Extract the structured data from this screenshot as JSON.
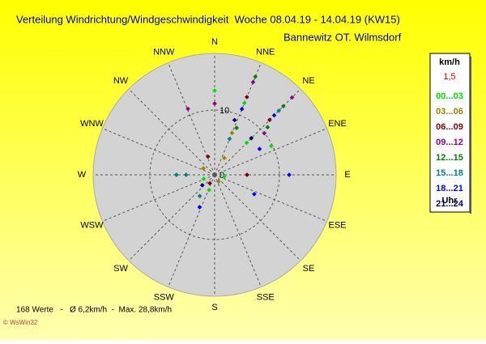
{
  "chart_data": {
    "type": "polar-scatter",
    "title": "Verteilung Windrichtung/Windgeschwindigkeit  Woche 08.04.19 - 14.04.19 (KW15)",
    "subtitle": "Bannewitz OT. Wilmsdorf",
    "directions": [
      "N",
      "NNE",
      "NE",
      "ENE",
      "E",
      "ESE",
      "SE",
      "SSE",
      "S",
      "SSW",
      "SW",
      "WSW",
      "W",
      "WNW",
      "NW",
      "NNW"
    ],
    "rlim": [
      0,
      18.75
    ],
    "rticks": [
      0,
      10
    ],
    "legend_title": "km/h",
    "legend_scale": "1,5",
    "legend_unit": "Uhr",
    "series": [
      {
        "name": "00...03",
        "color": "#00e000",
        "theta": [
          45,
          22.5,
          0,
          63,
          100,
          200,
          250
        ],
        "values": [
          7,
          12,
          13,
          9.8,
          1.5,
          2.5,
          1.8
        ]
      },
      {
        "name": "03...06",
        "color": "#a08000",
        "theta": [
          22.5,
          30,
          150,
          300
        ],
        "values": [
          7,
          3,
          1.2,
          2
        ]
      },
      {
        "name": "06...09",
        "color": "#800000",
        "theta": [
          45,
          22.5,
          90,
          340,
          210
        ],
        "values": [
          12,
          13,
          5,
          3,
          1.5
        ]
      },
      {
        "name": "09...12",
        "color": "#900090",
        "theta": [
          45,
          22.5,
          0,
          338,
          50
        ],
        "values": [
          16.9,
          15.5,
          11,
          11,
          10
        ]
      },
      {
        "name": "12...15",
        "color": "#008000",
        "theta": [
          45,
          22.5,
          48,
          25
        ],
        "values": [
          15,
          16.4,
          11,
          8
        ]
      },
      {
        "name": "15...18",
        "color": "#008080",
        "theta": [
          45,
          22.5,
          270,
          270,
          215
        ],
        "values": [
          14,
          6,
          5.9,
          4.4,
          4
        ]
      },
      {
        "name": "18...21",
        "color": "#0000ff",
        "theta": [
          45,
          22.5,
          90,
          116,
          205,
          60
        ],
        "values": [
          13,
          11,
          11.5,
          6.8,
          5.5,
          8
        ]
      },
      {
        "name": "21...24",
        "color": "#000080",
        "theta": [
          45,
          20,
          230
        ],
        "values": [
          8,
          9,
          2.5
        ]
      }
    ],
    "footer": "168 Werte   -   Ø 6,2km/h  -  Max. 28,8km/h",
    "credit": "© WsWin32"
  }
}
